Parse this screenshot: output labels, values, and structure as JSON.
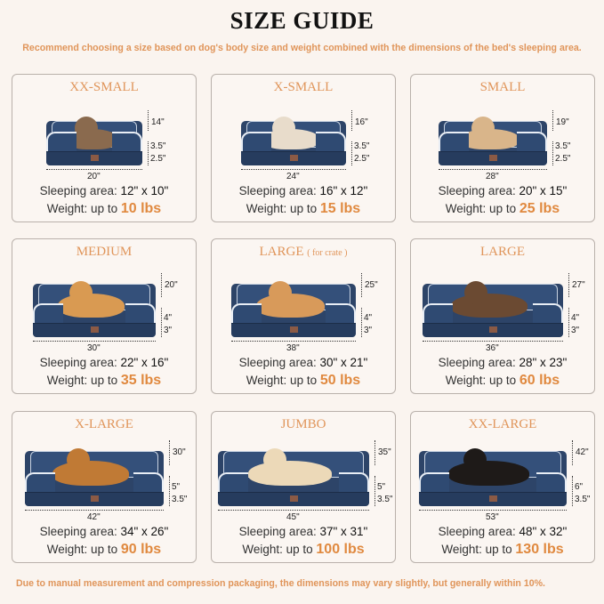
{
  "title": "SIZE GUIDE",
  "subtitle": "Recommend choosing a size based on dog's body size and weight combined with the dimensions of the bed's sleeping area.",
  "footer": "Due to manual measurement and compression packaging, the dimensions may vary slightly, but generally within 10%.",
  "labels": {
    "sleeping": "Sleeping area: ",
    "weight": "Weight: up to "
  },
  "colors": {
    "accent": "#e0955a",
    "bed": "#2d4468",
    "background": "#faf4ef"
  },
  "sizes": [
    {
      "name": "XX-SMALL",
      "note": "",
      "length": "20\"",
      "height": "14\"",
      "top": "3.5\"",
      "base": "2.5\"",
      "area": "12\" x 10\"",
      "weight": "10 lbs",
      "pet": "cat",
      "pet_color": "#8a6a4e"
    },
    {
      "name": "X-SMALL",
      "note": "",
      "length": "24\"",
      "height": "16\"",
      "top": "3.5\"",
      "base": "2.5\"",
      "area": "16\" x 12\"",
      "weight": "15 lbs",
      "pet": "dog",
      "pet_color": "#e8dccb"
    },
    {
      "name": "SMALL",
      "note": "",
      "length": "28\"",
      "height": "19\"",
      "top": "3.5\"",
      "base": "2.5\"",
      "area": "20\" x 15\"",
      "weight": "25 lbs",
      "pet": "dog",
      "pet_color": "#d9b58a"
    },
    {
      "name": "MEDIUM",
      "note": "",
      "length": "30\"",
      "height": "20\"",
      "top": "4\"",
      "base": "3\"",
      "area": "22\" x 16\"",
      "weight": "35 lbs",
      "pet": "dog",
      "pet_color": "#d99a52"
    },
    {
      "name": "LARGE",
      "note": "( for crate )",
      "length": "38\"",
      "height": "25\"",
      "top": "4\"",
      "base": "3\"",
      "area": "30\" x 21\"",
      "weight": "50 lbs",
      "pet": "dog",
      "pet_color": "#d89a5a"
    },
    {
      "name": "LARGE",
      "note": "",
      "length": "36\"",
      "height": "27\"",
      "top": "4\"",
      "base": "3\"",
      "area": "28\" x 23\"",
      "weight": "60 lbs",
      "pet": "dog",
      "pet_color": "#6b4a32"
    },
    {
      "name": "X-LARGE",
      "note": "",
      "length": "42\"",
      "height": "30\"",
      "top": "5\"",
      "base": "3.5\"",
      "area": "34\" x 26\"",
      "weight": "90 lbs",
      "pet": "dog",
      "pet_color": "#c07a35"
    },
    {
      "name": "JUMBO",
      "note": "",
      "length": "45\"",
      "height": "35\"",
      "top": "5\"",
      "base": "3.5\"",
      "area": "37\" x 31\"",
      "weight": "100 lbs",
      "pet": "dog",
      "pet_color": "#ecd9b8"
    },
    {
      "name": "XX-LARGE",
      "note": "",
      "length": "53\"",
      "height": "42\"",
      "top": "6\"",
      "base": "3.5\"",
      "area": "48\" x 32\"",
      "weight": "130 lbs",
      "pet": "dog",
      "pet_color": "#1e1a18"
    }
  ]
}
